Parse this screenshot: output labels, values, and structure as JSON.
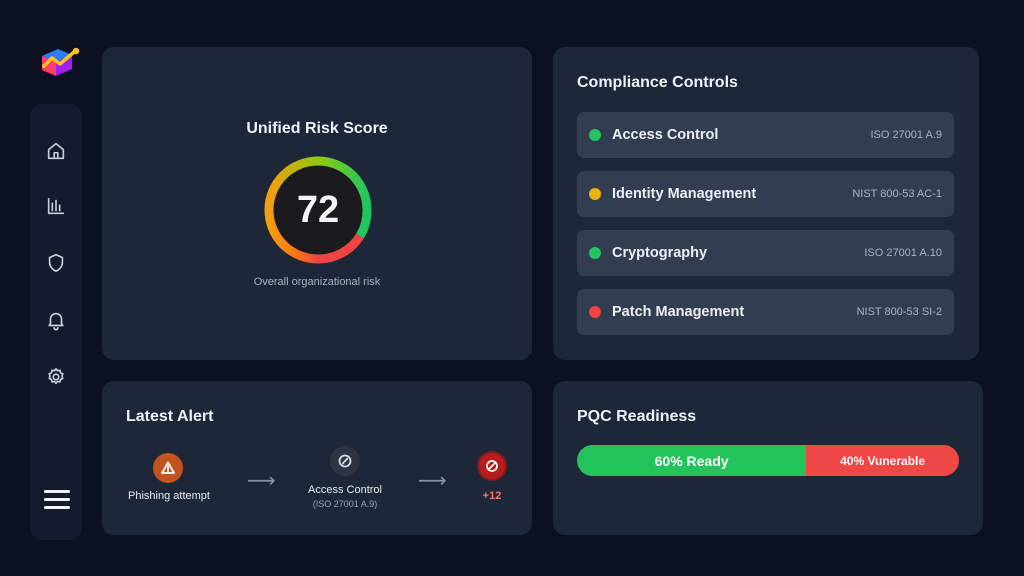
{
  "colors": {
    "background": "#0b1120",
    "card": "#1e2738",
    "row": "#333d50",
    "green": "#22c55e",
    "amber": "#eab308",
    "red": "#ef4444",
    "orange": "#c2531f"
  },
  "sidebar": {
    "logo": "app-logo",
    "items": [
      {
        "icon": "home-icon"
      },
      {
        "icon": "bar-chart-icon"
      },
      {
        "icon": "shield-icon"
      },
      {
        "icon": "bell-icon"
      },
      {
        "icon": "gear-icon"
      }
    ],
    "menu_icon": "hamburger-menu-icon"
  },
  "risk": {
    "title": "Unified Risk Score",
    "score": "72",
    "score_value": 72,
    "subtitle": "Overall organizational risk"
  },
  "compliance": {
    "title": "Compliance Controls",
    "controls": [
      {
        "name": "Access Control",
        "ref": "ISO 27001 A.9",
        "status": "green"
      },
      {
        "name": "Identity Management",
        "ref": "NIST 800-53 AC-1",
        "status": "amber"
      },
      {
        "name": "Cryptography",
        "ref": "ISO 27001 A.10",
        "status": "green"
      },
      {
        "name": "Patch Management",
        "ref": "NIST 800-53 SI-2",
        "status": "red"
      }
    ]
  },
  "alert": {
    "title": "Latest Alert",
    "steps": [
      {
        "label": "Phishing attempt",
        "icon": "warning-icon"
      },
      {
        "label": "Access Control",
        "sub": "(ISO 27001 A.9)",
        "icon": "compass-icon"
      },
      {
        "label": "+12",
        "icon": "blocked-icon"
      }
    ]
  },
  "pqc": {
    "title": "PQC Readiness",
    "ready_label": "60% Ready",
    "vulnerable_label": "40% Vunerable",
    "ready_fraction": 0.6
  }
}
